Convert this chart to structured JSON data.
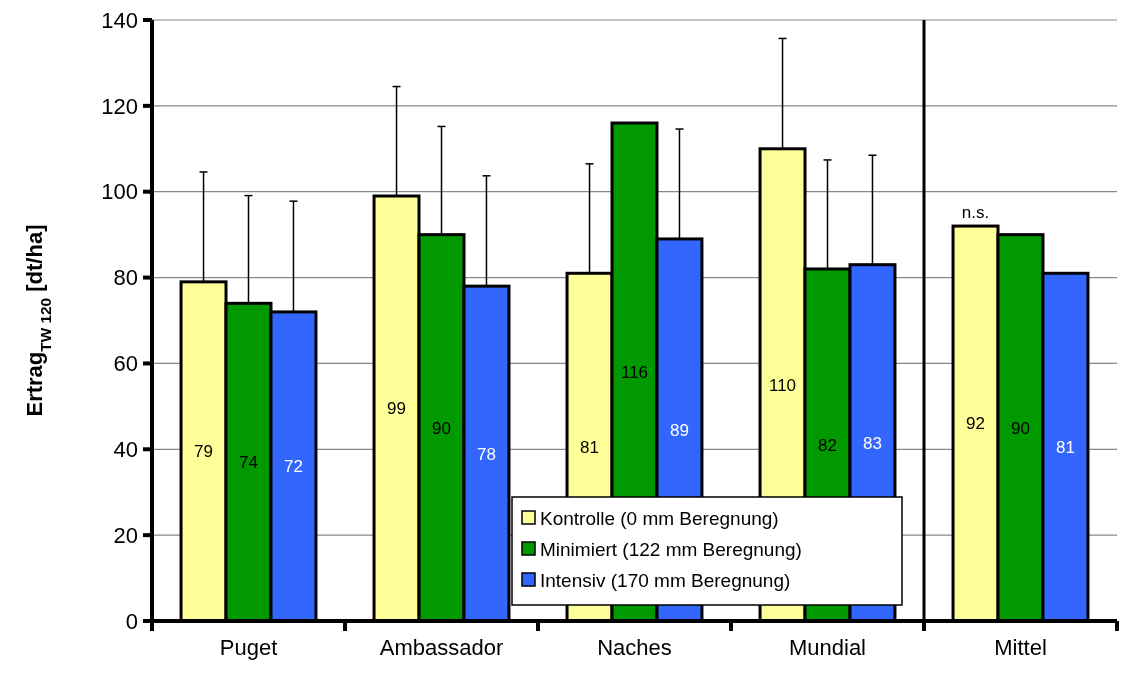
{
  "chart_data": [
    {
      "type": "bar",
      "ylabel": "Ertrag$_{TW 120}$ [dt/ha]",
      "categories": [
        "Puget",
        "Ambassador",
        "Naches",
        "Mundial"
      ],
      "series": [
        {
          "name": "Kontrolle (0 mm Beregnung)",
          "color": "#ffff99",
          "values": [
            79,
            99,
            81,
            110
          ],
          "errors": [
            [
              79,
              104.6
            ],
            [
              99,
              124.5
            ],
            [
              81,
              106.5
            ],
            [
              110,
              135.7
            ]
          ]
        },
        {
          "name": "Minimiert (122 mm Beregnung)",
          "color": "#009900",
          "values": [
            74,
            90,
            116,
            82
          ],
          "errors": [
            [
              74,
              99.1
            ],
            [
              90,
              115.2
            ],
            null,
            [
              82,
              107.4
            ]
          ]
        },
        {
          "name": "Intensiv (170 mm Beregnung)",
          "color": "#3366ff",
          "values": [
            72,
            78,
            89,
            83
          ],
          "errors": [
            [
              72,
              97.8
            ],
            [
              78,
              103.7
            ],
            [
              89,
              114.6
            ],
            [
              83,
              108.5
            ]
          ]
        }
      ],
      "ylim": [
        0,
        140
      ],
      "yticks": [
        0,
        20,
        40,
        60,
        80,
        100,
        120,
        140
      ],
      "grid": "y",
      "legend": "bottom right",
      "data_labels": true
    },
    {
      "type": "bar",
      "categories": [
        "Mittel"
      ],
      "series": [
        {
          "color": "#ffff99",
          "values": [
            92
          ]
        },
        {
          "color": "#009900",
          "values": [
            90
          ]
        },
        {
          "color": "#3366ff",
          "values": [
            81
          ]
        }
      ],
      "ylim": [
        0,
        140
      ],
      "yticks": [
        0,
        20,
        40,
        60,
        80,
        100,
        120,
        140
      ],
      "tick_labels": "x",
      "grid": "y",
      "data_labels": true,
      "annotations": [
        "n.s."
      ]
    }
  ]
}
